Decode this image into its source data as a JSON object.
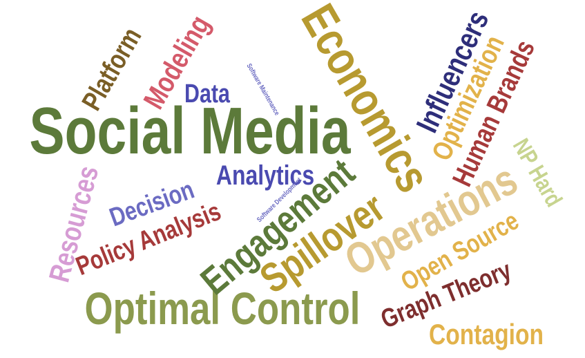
{
  "words": {
    "social_media": {
      "text": "Social Media",
      "color": "#5c7a3a"
    },
    "economics": {
      "text": "Economics",
      "color": "#b79a30"
    },
    "optimal_control": {
      "text": "Optimal Control",
      "color": "#8b9a4e"
    },
    "engagement": {
      "text": "Engagement",
      "color": "#5c7a3a"
    },
    "spillover": {
      "text": "Spillover",
      "color": "#b79a30"
    },
    "operations": {
      "text": "Operations",
      "color": "#e2c890"
    },
    "influencers": {
      "text": "Influencers",
      "color": "#2e2e7a"
    },
    "optimization": {
      "text": "Optimization",
      "color": "#e2b24a"
    },
    "human_brands": {
      "text": "Human Brands",
      "color": "#a63a3a"
    },
    "np_hard": {
      "text": "NP Hard",
      "color": "#c7d48f"
    },
    "open_source": {
      "text": "Open Source",
      "color": "#e2b24a"
    },
    "graph_theory": {
      "text": "Graph Theory",
      "color": "#7e2e2e"
    },
    "contagion": {
      "text": "Contagion",
      "color": "#e2b24a"
    },
    "policy_analysis": {
      "text": "Policy Analysis",
      "color": "#a63a3a"
    },
    "decision": {
      "text": "Decision",
      "color": "#6b6bc2"
    },
    "analytics": {
      "text": "Analytics",
      "color": "#4a4ab0"
    },
    "resources": {
      "text": "Resources",
      "color": "#d69cd4"
    },
    "platform": {
      "text": "Platform",
      "color": "#7a5e26"
    },
    "modeling": {
      "text": "Modeling",
      "color": "#d45a6a"
    },
    "data": {
      "text": "Data",
      "color": "#4a4ab0"
    },
    "software_maintenance": {
      "text": "Software Maintenance",
      "color": "#6b6bc2"
    },
    "software_development": {
      "text": "Software Development",
      "color": "#6b6bc2"
    }
  }
}
